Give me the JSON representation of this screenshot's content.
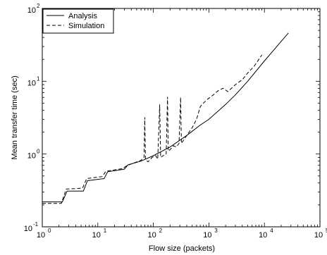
{
  "chart_data": {
    "type": "line",
    "title": "",
    "xlabel": "Flow size (packets)",
    "ylabel": "Mean transfer  time (sec)",
    "xscale": "log",
    "yscale": "log",
    "xlim": [
      1,
      100000
    ],
    "ylim": [
      0.1,
      100
    ],
    "grid": false,
    "legend_position": "top-left",
    "x_ticks": [
      {
        "base": "10",
        "exp": "0",
        "value": 1
      },
      {
        "base": "10",
        "exp": "1",
        "value": 10
      },
      {
        "base": "10",
        "exp": "2",
        "value": 100
      },
      {
        "base": "10",
        "exp": "3",
        "value": 1000
      },
      {
        "base": "10",
        "exp": "4",
        "value": 10000
      },
      {
        "base": "10",
        "exp": "5",
        "value": 100000
      }
    ],
    "y_ticks": [
      {
        "base": "10",
        "exp": "-1",
        "value": 0.1
      },
      {
        "base": "10",
        "exp": "0",
        "value": 1
      },
      {
        "base": "10",
        "exp": "1",
        "value": 10
      },
      {
        "base": "10",
        "exp": "2",
        "value": 100
      }
    ],
    "series": [
      {
        "name": "Analysis",
        "style": "solid",
        "color": "#000000",
        "points": [
          [
            1,
            0.22
          ],
          [
            2.3,
            0.22
          ],
          [
            2.8,
            0.31
          ],
          [
            5.5,
            0.31
          ],
          [
            6.5,
            0.43
          ],
          [
            13,
            0.46
          ],
          [
            15,
            0.57
          ],
          [
            30,
            0.62
          ],
          [
            35,
            0.71
          ],
          [
            60,
            0.8
          ],
          [
            100,
            0.95
          ],
          [
            200,
            1.25
          ],
          [
            400,
            1.8
          ],
          [
            700,
            2.5
          ],
          [
            1000,
            3.0
          ],
          [
            2000,
            4.8
          ],
          [
            3000,
            6.5
          ],
          [
            5000,
            10
          ],
          [
            10000,
            19
          ],
          [
            27000,
            46
          ]
        ]
      },
      {
        "name": "Simulation",
        "style": "dashed",
        "color": "#000000",
        "points": [
          [
            1,
            0.21
          ],
          [
            2.2,
            0.21
          ],
          [
            2.7,
            0.33
          ],
          [
            5.3,
            0.34
          ],
          [
            6.3,
            0.46
          ],
          [
            12,
            0.49
          ],
          [
            14,
            0.58
          ],
          [
            28,
            0.63
          ],
          [
            33,
            0.69
          ],
          [
            50,
            0.78
          ],
          [
            60,
            0.82
          ],
          [
            68,
            0.9
          ],
          [
            70,
            3.2
          ],
          [
            72,
            0.85
          ],
          [
            80,
            0.78
          ],
          [
            95,
            0.9
          ],
          [
            110,
            0.95
          ],
          [
            120,
            0.85
          ],
          [
            130,
            4.8
          ],
          [
            135,
            0.9
          ],
          [
            150,
            0.95
          ],
          [
            170,
            1.0
          ],
          [
            180,
            6.1
          ],
          [
            185,
            1.1
          ],
          [
            200,
            1.15
          ],
          [
            230,
            1.3
          ],
          [
            260,
            1.25
          ],
          [
            290,
            1.4
          ],
          [
            310,
            6.0
          ],
          [
            320,
            1.4
          ],
          [
            360,
            1.6
          ],
          [
            420,
            1.9
          ],
          [
            500,
            2.3
          ],
          [
            600,
            3.0
          ],
          [
            700,
            4.5
          ],
          [
            900,
            5.5
          ],
          [
            1200,
            6.5
          ],
          [
            1500,
            7.5
          ],
          [
            1800,
            8.0
          ],
          [
            2200,
            7.2
          ],
          [
            3000,
            9.0
          ],
          [
            4000,
            10.5
          ],
          [
            5000,
            13
          ],
          [
            6500,
            16
          ],
          [
            9000,
            23
          ]
        ]
      }
    ]
  }
}
